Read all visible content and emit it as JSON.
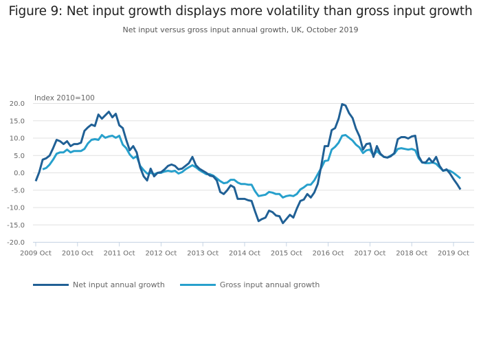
{
  "header": {
    "title": "Figure 9: Net input growth displays more volatility than gross input growth",
    "subtitle": "Net input versus gross input annual growth, UK, October 2019"
  },
  "colors": {
    "net": "#206095",
    "gross": "#27a0cc",
    "grid": "#e0e0e0",
    "axis": "#c5d3e3"
  },
  "chart_data": {
    "type": "line",
    "title": "Figure 9: Net input growth displays more volatility than gross input growth",
    "subtitle": "Net input versus gross input annual growth, UK, October 2019",
    "ylabel": "Index 2010=100",
    "xlabel": "",
    "ylim": [
      -20,
      20
    ],
    "yticks": [
      "20.0",
      "15.0",
      "10.0",
      "5.0",
      "0.0",
      "-5.0",
      "-10.0",
      "-15.0",
      "-20.0"
    ],
    "ytick_values": [
      20,
      15,
      10,
      5,
      0,
      -5,
      -10,
      -15,
      -20
    ],
    "xticks": [
      "2009 Oct",
      "2010 Oct",
      "2011 Oct",
      "2012 Oct",
      "2013 Oct",
      "2014 Oct",
      "2015 Oct",
      "2016 Oct",
      "2017 Oct",
      "2018 Oct",
      "2019 Oct"
    ],
    "x_start": "2009 Oct",
    "x_end": "2019 Oct",
    "x_frequency": "monthly",
    "grid": true,
    "legend_position": "bottom-left",
    "series": [
      {
        "name": "Net input annual growth",
        "start_month_index": 0,
        "values": [
          -2.4,
          0.2,
          3.8,
          4.2,
          5.0,
          7.1,
          9.5,
          9.1,
          8.3,
          9.1,
          7.7,
          8.3,
          8.3,
          8.7,
          12.1,
          13.1,
          13.9,
          13.5,
          16.8,
          15.6,
          16.6,
          17.6,
          16.0,
          17.0,
          13.7,
          12.9,
          9.5,
          6.5,
          7.7,
          5.9,
          1.6,
          -1.0,
          -2.2,
          1.2,
          -1.0,
          0.0,
          0.2,
          1.0,
          2.0,
          2.4,
          2.0,
          1.0,
          1.2,
          2.0,
          2.8,
          4.6,
          2.2,
          1.2,
          0.6,
          0.0,
          -0.8,
          -1.0,
          -2.2,
          -5.5,
          -6.1,
          -5.0,
          -3.6,
          -4.2,
          -7.5,
          -7.5,
          -7.5,
          -7.9,
          -8.1,
          -11.1,
          -13.9,
          -13.3,
          -12.9,
          -10.9,
          -11.3,
          -12.3,
          -12.5,
          -14.5,
          -13.3,
          -12.1,
          -12.9,
          -10.3,
          -8.1,
          -7.7,
          -6.1,
          -7.1,
          -5.7,
          -3.2,
          2.0,
          7.7,
          7.7,
          12.3,
          12.9,
          15.6,
          19.8,
          19.4,
          17.2,
          15.8,
          12.7,
          10.5,
          6.7,
          8.3,
          8.5,
          4.6,
          7.7,
          5.5,
          4.6,
          4.4,
          4.8,
          5.7,
          9.7,
          10.3,
          10.3,
          9.9,
          10.5,
          10.7,
          4.8,
          3.0,
          3.0,
          4.2,
          3.0,
          4.6,
          2.0,
          0.6,
          1.0,
          -0.2,
          -1.8,
          -3.2,
          -4.8
        ]
      },
      {
        "name": "Gross input annual growth",
        "start_month_index": 2,
        "values": [
          1.0,
          1.4,
          2.4,
          3.8,
          5.5,
          5.9,
          5.9,
          6.7,
          5.9,
          6.3,
          6.3,
          6.3,
          6.9,
          8.5,
          9.5,
          9.7,
          9.5,
          10.9,
          10.1,
          10.5,
          10.7,
          10.1,
          10.7,
          8.1,
          7.1,
          5.3,
          4.2,
          4.8,
          2.0,
          0.8,
          -0.2,
          0.0,
          -0.4,
          0.0,
          0.0,
          0.4,
          0.6,
          0.4,
          0.6,
          -0.2,
          0.2,
          1.0,
          1.6,
          2.2,
          1.6,
          0.8,
          0.2,
          -0.4,
          -0.4,
          -0.8,
          -1.6,
          -2.4,
          -3.0,
          -2.8,
          -2.0,
          -2.0,
          -2.8,
          -3.2,
          -3.2,
          -3.4,
          -3.4,
          -5.3,
          -6.7,
          -6.5,
          -6.3,
          -5.5,
          -5.7,
          -6.1,
          -6.1,
          -7.1,
          -6.7,
          -6.5,
          -6.7,
          -6.1,
          -4.8,
          -4.2,
          -3.4,
          -3.4,
          -2.2,
          -0.4,
          1.4,
          3.4,
          3.6,
          6.7,
          7.5,
          8.7,
          10.7,
          10.9,
          10.1,
          9.3,
          8.1,
          7.3,
          5.7,
          6.5,
          6.7,
          5.0,
          6.3,
          5.3,
          4.6,
          4.4,
          5.0,
          5.5,
          6.9,
          7.1,
          6.9,
          6.7,
          6.9,
          6.5,
          4.2,
          3.0,
          2.8,
          2.8,
          3.0,
          2.6,
          1.6,
          0.6,
          0.8,
          0.6,
          0.0,
          -0.8,
          -1.6
        ]
      }
    ]
  },
  "legend": {
    "items": [
      {
        "label": "Net input annual growth",
        "series": "net"
      },
      {
        "label": "Gross input annual growth",
        "series": "gross"
      }
    ]
  }
}
